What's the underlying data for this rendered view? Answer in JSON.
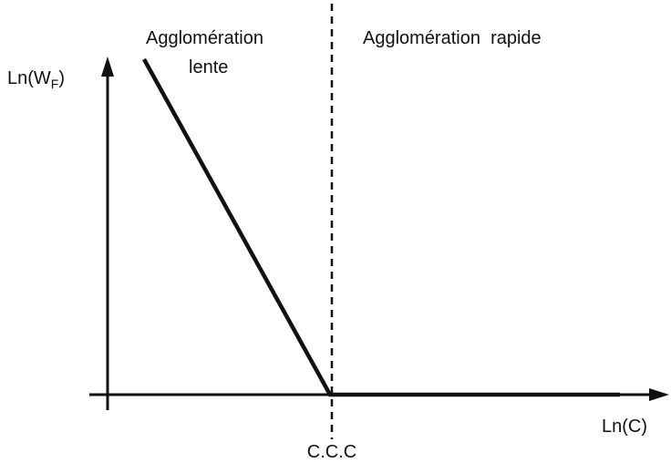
{
  "regions": {
    "left": {
      "line1": "Agglomération",
      "line2": "lente"
    },
    "right": "Agglomération  rapide"
  },
  "y_axis_label": {
    "main": "Ln(W",
    "sub": "F",
    "end": ")"
  },
  "x_axis_label": "Ln(C)",
  "threshold_label": "C.C.C"
}
